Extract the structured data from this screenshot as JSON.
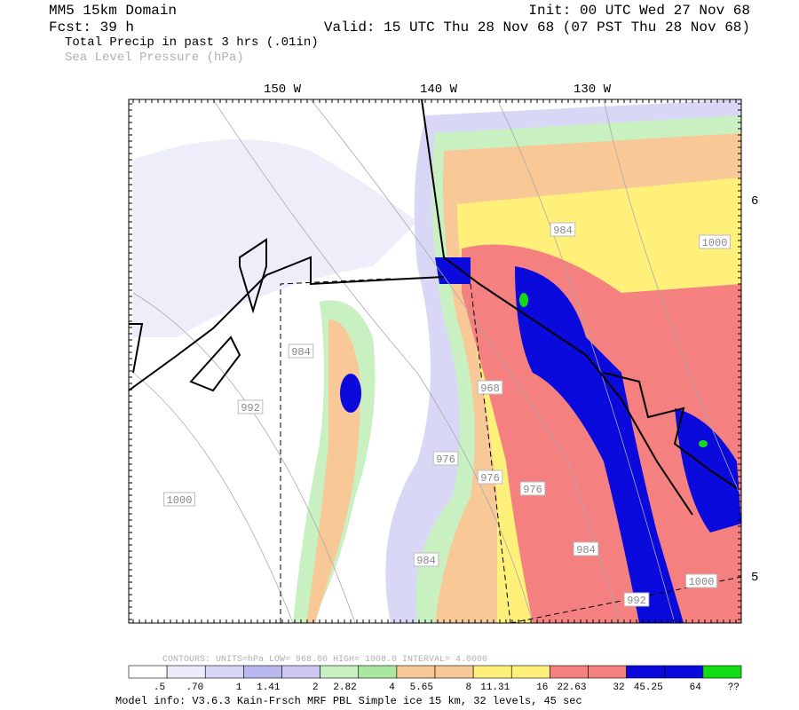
{
  "header": {
    "model": "MM5 15km Domain",
    "init": "Init: 00 UTC Wed 27 Nov 68",
    "forecast": "Fcst:   39 h",
    "valid": "Valid: 15 UTC Thu 28 Nov 68 (07 PST Thu 28 Nov 68)",
    "field": "Total Precip in past 3 hrs (.01in)",
    "overlay": "Sea Level Pressure (hPa)"
  },
  "map": {
    "longitude_labels": [
      "150 W",
      "140 W",
      "130 W"
    ],
    "latitude_labels": [
      "6",
      "5"
    ],
    "contour_labels": [
      "984",
      "992",
      "1000",
      "968",
      "976",
      "976",
      "976",
      "984",
      "984",
      "992",
      "1000",
      "984",
      "1000"
    ]
  },
  "legend": {
    "contours": "CONTOURS:  UNITS=hPa  LOW=  968.00      HIGH=  1008.0      INTERVAL=   4.0000",
    "labels": [
      ".5",
      ".70",
      "1",
      "1.41",
      "2",
      "2.82",
      "4",
      "5.65",
      "8",
      "11.31",
      "16",
      "22.63",
      "32",
      "45.25",
      "64",
      "??"
    ]
  },
  "footer": "Model info: V3.6.3 Kain-Frsch MRF PBL    Simple ice    15 km,  32 levels,   45 sec"
}
